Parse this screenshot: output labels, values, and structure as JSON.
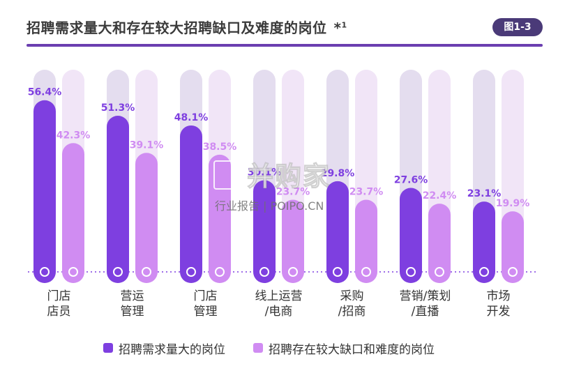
{
  "header": {
    "title": "招聘需求量大和存在较大招聘缺口及难度的岗位",
    "title_mark": "*",
    "title_sup": "1",
    "figure_label": "图1-3"
  },
  "watermark": {
    "name": "并购家",
    "sub": "行业报告 | POIPO.CN"
  },
  "legend": {
    "items": [
      {
        "label": "招聘需求量大的岗位",
        "color": "#7e3fe0"
      },
      {
        "label": "招聘存在较大缺口和难度的岗位",
        "color": "#d08cf2"
      }
    ]
  },
  "chart_data": {
    "type": "bar",
    "categories": [
      [
        "门店",
        "店员"
      ],
      [
        "营运",
        "管理"
      ],
      [
        "门店",
        "管理"
      ],
      [
        "线上运营",
        "/电商"
      ],
      [
        "采购",
        "/招商"
      ],
      [
        "营销/策划",
        "/直播"
      ],
      [
        "市场",
        "开发"
      ]
    ],
    "series": [
      {
        "name": "招聘需求量大的岗位",
        "values": [
          56.4,
          51.3,
          48.1,
          30.1,
          29.8,
          27.6,
          23.1
        ],
        "labels": [
          "56.4%",
          "51.3%",
          "48.1%",
          "30.1%",
          "29.8%",
          "27.6%",
          "23.1%"
        ],
        "color": "#7e3fe0"
      },
      {
        "name": "招聘存在较大缺口和难度的岗位",
        "values": [
          42.3,
          39.1,
          38.5,
          23.7,
          23.7,
          22.4,
          19.9
        ],
        "labels": [
          "42.3%",
          "39.1%",
          "38.5%",
          "23.7%",
          "23.7%",
          "22.4%",
          "19.9%"
        ],
        "color": "#d08cf2"
      }
    ],
    "ylim": [
      0,
      60
    ],
    "track_colors": [
      "#e4ddef",
      "#f1e5f7"
    ],
    "baseline_color": "#7e3fe0"
  }
}
